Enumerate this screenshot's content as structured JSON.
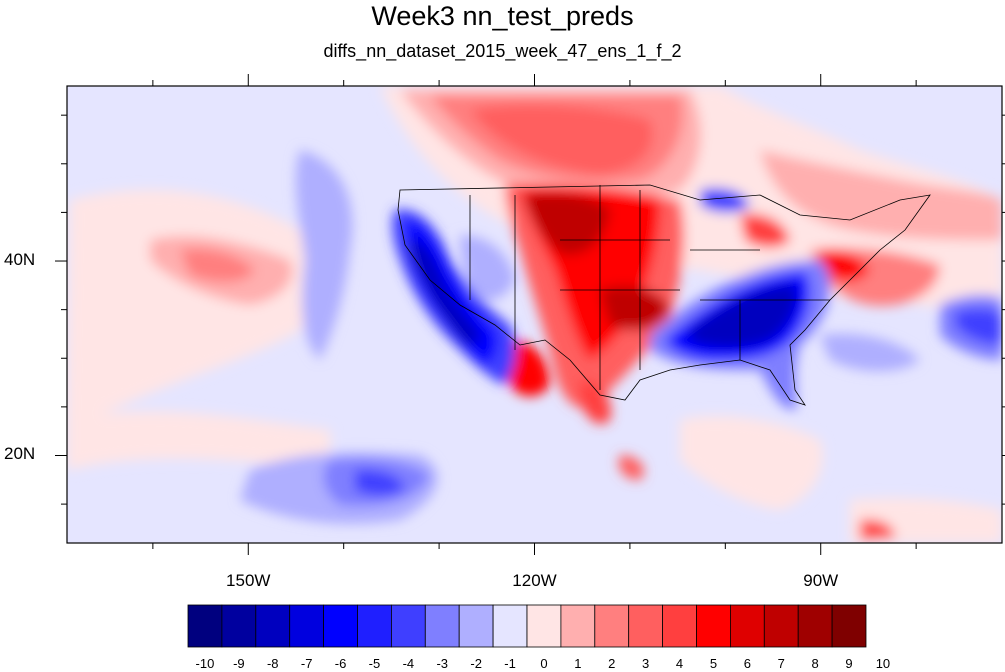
{
  "title": "Week3 nn_test_preds",
  "subtitle": "diffs_nn_dataset_2015_week_47_ens_1_f_2",
  "map": {
    "lon_range": [
      -169,
      -71
    ],
    "lat_range": [
      11,
      58
    ],
    "lon_labels": [
      {
        "lon": -150,
        "text": "150W"
      },
      {
        "lon": -120,
        "text": "120W"
      },
      {
        "lon": -90,
        "text": "90W"
      }
    ],
    "lat_labels": [
      {
        "lat": 40,
        "text": "40N"
      },
      {
        "lat": 20,
        "text": "20N"
      }
    ]
  },
  "colorbar": {
    "labels": [
      "-10",
      "-9",
      "-8",
      "-7",
      "-6",
      "-5",
      "-4",
      "-3",
      "-2",
      "-1",
      "0",
      "1",
      "2",
      "3",
      "4",
      "5",
      "6",
      "7",
      "8",
      "9",
      "10"
    ],
    "colors": [
      "#00007f",
      "#00009f",
      "#0000bf",
      "#0000df",
      "#0000ff",
      "#1f1fff",
      "#3f3fff",
      "#7f7fff",
      "#afafff",
      "#e5e5ff",
      "#ffe5e5",
      "#ffafaf",
      "#ff7f7f",
      "#ff5f5f",
      "#ff3f3f",
      "#ff0000",
      "#df0000",
      "#bf0000",
      "#9f0000",
      "#7f0000"
    ]
  }
}
